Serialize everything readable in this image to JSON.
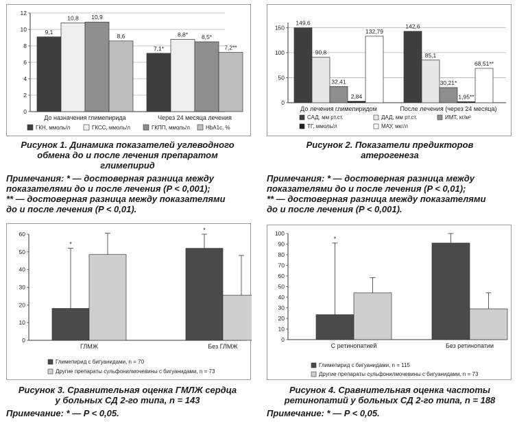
{
  "chart_data": [
    {
      "type": "bar",
      "title": "",
      "categories": [
        "До назначения глимепирида",
        "Через 24 месяца лечения"
      ],
      "series": [
        {
          "name": "ГКН, ммоль/л",
          "values": [
            9.1,
            7.1
          ],
          "labels": [
            "9,1",
            "7,1*"
          ],
          "color": "#3f3f3f"
        },
        {
          "name": "ГКСС, ммоль/л",
          "values": [
            10.8,
            8.8
          ],
          "labels": [
            "10,8",
            "8,8*"
          ],
          "color": "#efefef"
        },
        {
          "name": "ГКПП, ммоль/л",
          "values": [
            10.9,
            8.5
          ],
          "labels": [
            "10,9",
            "8,5*"
          ],
          "color": "#8e8e8e"
        },
        {
          "name": "HbA1c, %",
          "values": [
            8.6,
            7.2
          ],
          "labels": [
            "8,6",
            "7,2**"
          ],
          "color": "#bdbdbd"
        }
      ],
      "yticks": [
        "0",
        "2",
        "4",
        "6",
        "8",
        "10",
        "12"
      ],
      "ylim": [
        0,
        12
      ],
      "grid": true,
      "legend": "bottom"
    },
    {
      "type": "bar",
      "title": "",
      "categories": [
        "До лечения глимепиридом",
        "После лечения (через 24 месяца)"
      ],
      "series": [
        {
          "name": "САД, мм рт.ст.",
          "values": [
            149.6,
            142.6
          ],
          "labels": [
            "149,6",
            "142,6"
          ],
          "color": "#3f3f3f"
        },
        {
          "name": "ДАД, мм рт.ст.",
          "values": [
            90.8,
            85.1
          ],
          "labels": [
            "90,8",
            "85,1"
          ],
          "color": "#e6e6e6"
        },
        {
          "name": "ИМТ, кг/м²",
          "values": [
            32.41,
            30.21
          ],
          "labels": [
            "32,41",
            "30,21*"
          ],
          "color": "#8e8e8e"
        },
        {
          "name": "ТГ, ммоль/л",
          "values": [
            2.84,
            1.95
          ],
          "labels": [
            "2,84",
            "1,95**"
          ],
          "color": "#1e1e1e"
        },
        {
          "name": "МАУ, мкг/л",
          "values": [
            132.79,
            68.51
          ],
          "labels": [
            "132,79",
            "68,51**"
          ],
          "color": "#ffffff"
        }
      ],
      "yticks": [
        "0",
        "50",
        "100",
        "150"
      ],
      "ylim": [
        0,
        160
      ],
      "grid": true,
      "legend": "bottom"
    },
    {
      "type": "bar",
      "title": "",
      "categories": [
        "ГЛМЖ",
        "Без ГЛМЖ"
      ],
      "series": [
        {
          "name": "Глимепирид с бигуанидами, n = 70",
          "values": [
            18,
            52
          ],
          "error": [
            34,
            8
          ],
          "marks": [
            "*",
            "*"
          ],
          "color": "#4a4a4a"
        },
        {
          "name": "Другие препараты сульфонилмочевины с бигуанидами, n = 73",
          "values": [
            48.5,
            25.5
          ],
          "error": [
            12,
            22.5
          ],
          "marks": [
            "",
            ""
          ],
          "color": "#cfcfcf"
        }
      ],
      "yticks": [
        "0",
        "10",
        "20",
        "30",
        "40",
        "50",
        "60"
      ],
      "ylim": [
        0,
        60
      ],
      "grid": false,
      "legend": "bottom"
    },
    {
      "type": "bar",
      "title": "",
      "categories": [
        "С ретинопатией",
        "Без ретинопатии"
      ],
      "series": [
        {
          "name": "Глимепирид с бигуанидами, n = 115",
          "values": [
            23.5,
            91
          ],
          "error": [
            67.5,
            9
          ],
          "marks": [
            "*",
            ""
          ],
          "color": "#4a4a4a"
        },
        {
          "name": "Другие препараты сульфонилмочевины с бигуанидами, n = 73",
          "values": [
            44,
            29
          ],
          "error": [
            14.5,
            15
          ],
          "marks": [
            "",
            ""
          ],
          "color": "#cfcfcf"
        }
      ],
      "yticks": [
        "0",
        "10",
        "20",
        "30",
        "40",
        "50",
        "60",
        "70",
        "80",
        "90",
        "100"
      ],
      "ylim": [
        0,
        100
      ],
      "grid": false,
      "legend": "bottom"
    }
  ],
  "captions": {
    "fig1": [
      "Рисунок 1. Динамика показателей углеводного",
      "обмена до и после лечения препаратом",
      "глимепирид"
    ],
    "fig2": [
      "Рисунок 2. Показатели предикторов",
      "атерогенеза"
    ],
    "fig3": [
      "Рисунок 3. Сравнительная оценка ГМЛЖ сердца",
      "у больных СД 2-го типа, n = 143"
    ],
    "fig4": [
      "Рисунок 4. Сравнительная оценка частоты",
      "ретинопатий у больных СД 2-го типа, n = 188"
    ]
  },
  "notes": {
    "fig1": [
      "Примечания: * — достоверная разница между",
      "показателями до и после лечения (P < 0,001);",
      "** — достоверная разница между показателями",
      "до и после лечения (P < 0,01)."
    ],
    "fig2": [
      "Примечания: * — достоверная разница между",
      "показателями до и после лечения (P < 0,01);",
      "** — достоверная разница между показателями",
      "до и после лечения (P < 0,001)."
    ],
    "fig3": [
      "Примечание: * — P < 0,05."
    ],
    "fig4": [
      "Примечание: * — P < 0,05."
    ]
  }
}
